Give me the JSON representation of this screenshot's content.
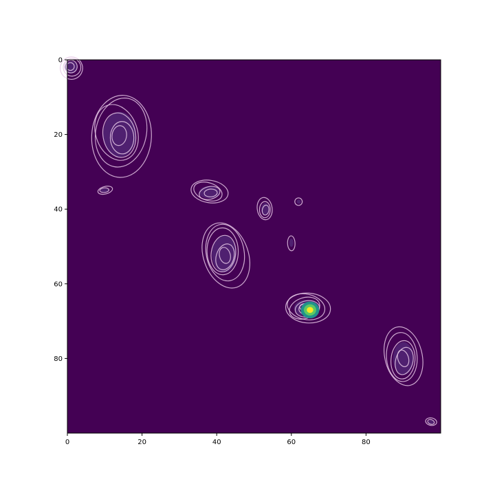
{
  "chart_data": {
    "type": "heatmap",
    "title": "",
    "xlabel": "",
    "ylabel": "",
    "xlim": [
      0,
      100
    ],
    "ylim": [
      100,
      0
    ],
    "x_ticks": [
      0,
      20,
      40,
      60,
      80
    ],
    "x_tick_labels": [
      "0",
      "20",
      "40",
      "60",
      "80"
    ],
    "y_ticks": [
      0,
      20,
      40,
      60,
      80
    ],
    "y_tick_labels": [
      "0",
      "20",
      "40",
      "60",
      "80"
    ],
    "grid": false,
    "legend": "none",
    "colormap": "viridis",
    "background_color": "#440154",
    "contour_color": "#e6c8e6",
    "hotspot_colors": [
      "#fde725",
      "#5ec962",
      "#21918c"
    ],
    "clusters": [
      {
        "center": [
          1,
          2
        ],
        "spread": [
          3,
          3
        ],
        "levels": 4
      },
      {
        "center": [
          14,
          20
        ],
        "spread": [
          8,
          11
        ],
        "levels": 6
      },
      {
        "center": [
          10,
          35
        ],
        "spread": [
          2,
          1
        ],
        "levels": 2
      },
      {
        "center": [
          38,
          35.5
        ],
        "spread": [
          5,
          3
        ],
        "levels": 4
      },
      {
        "center": [
          53,
          40
        ],
        "spread": [
          2,
          3
        ],
        "levels": 3
      },
      {
        "center": [
          62,
          38
        ],
        "spread": [
          1,
          1
        ],
        "levels": 1
      },
      {
        "center": [
          60,
          49
        ],
        "spread": [
          1,
          2
        ],
        "levels": 1
      },
      {
        "center": [
          42,
          52
        ],
        "spread": [
          6,
          9
        ],
        "levels": 6
      },
      {
        "center": [
          64,
          66.5
        ],
        "spread": [
          6,
          4
        ],
        "levels": 6
      },
      {
        "center": [
          90,
          80
        ],
        "spread": [
          5,
          8
        ],
        "levels": 5
      },
      {
        "center": [
          97.5,
          97
        ],
        "spread": [
          1.5,
          1
        ],
        "levels": 2
      }
    ],
    "hotspot": {
      "center": [
        65,
        67
      ],
      "value": 1.0
    }
  }
}
